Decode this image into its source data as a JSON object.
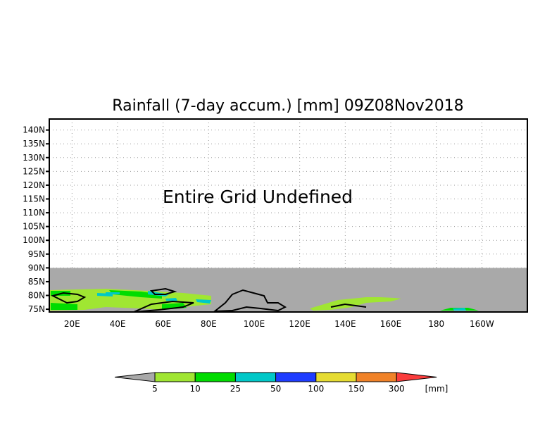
{
  "title": "Rainfall (7-day accum.) [mm] 09Z08Nov2018",
  "message": "Entire Grid Undefined",
  "map": {
    "lat_labels": [
      "140N",
      "135N",
      "130N",
      "125N",
      "120N",
      "115N",
      "110N",
      "105N",
      "100N",
      "95N",
      "90N",
      "85N",
      "80N",
      "75N"
    ],
    "lat_values": [
      140,
      135,
      130,
      125,
      120,
      115,
      110,
      105,
      100,
      95,
      90,
      85,
      80,
      75
    ],
    "lon_labels": [
      "20E",
      "40E",
      "60E",
      "80E",
      "100E",
      "120E",
      "140E",
      "160E",
      "180",
      "160W"
    ],
    "lon_values": [
      20,
      40,
      60,
      80,
      100,
      120,
      140,
      160,
      180,
      200
    ],
    "lon_range": [
      10,
      220
    ],
    "lat_range": [
      74,
      144
    ],
    "defined_lat_max": 90,
    "undefined_color": "#a9a9a9"
  },
  "colorbar": {
    "labels": [
      "5",
      "10",
      "25",
      "50",
      "100",
      "150",
      "300"
    ],
    "unit": "[mm]",
    "colors": [
      "#a9a9a9",
      "#a0e632",
      "#00dc00",
      "#00c8c8",
      "#1e3cff",
      "#e6dc32",
      "#f08228",
      "#fa3c3c"
    ]
  }
}
